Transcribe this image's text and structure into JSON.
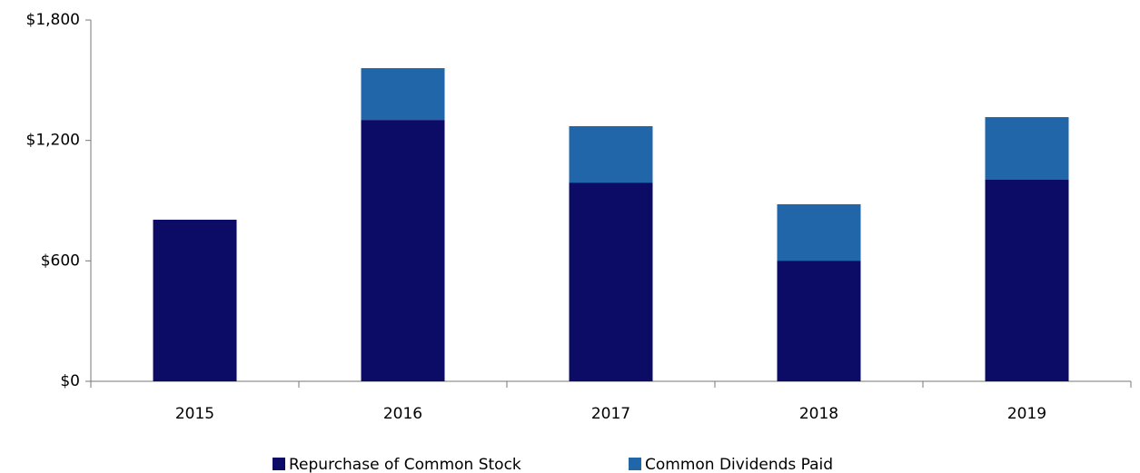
{
  "chart_data": {
    "type": "stacked_bar",
    "categories": [
      "2015",
      "2016",
      "2017",
      "2018",
      "2019"
    ],
    "series": [
      {
        "name": "Repurchase of Common Stock",
        "color": "#0c0c66",
        "values": [
          805,
          1302,
          990,
          601,
          1004
        ]
      },
      {
        "name": "Common Dividends Paid",
        "color": "#2166a8",
        "values": [
          0,
          258,
          281,
          281,
          312
        ]
      }
    ],
    "ylim": [
      0,
      1800
    ],
    "yticks": [
      {
        "value": 0,
        "label": "$0"
      },
      {
        "value": 600,
        "label": "$600"
      },
      {
        "value": 1200,
        "label": "$1,200"
      },
      {
        "value": 1800,
        "label": "$1,800"
      }
    ],
    "legend": "bottom"
  }
}
